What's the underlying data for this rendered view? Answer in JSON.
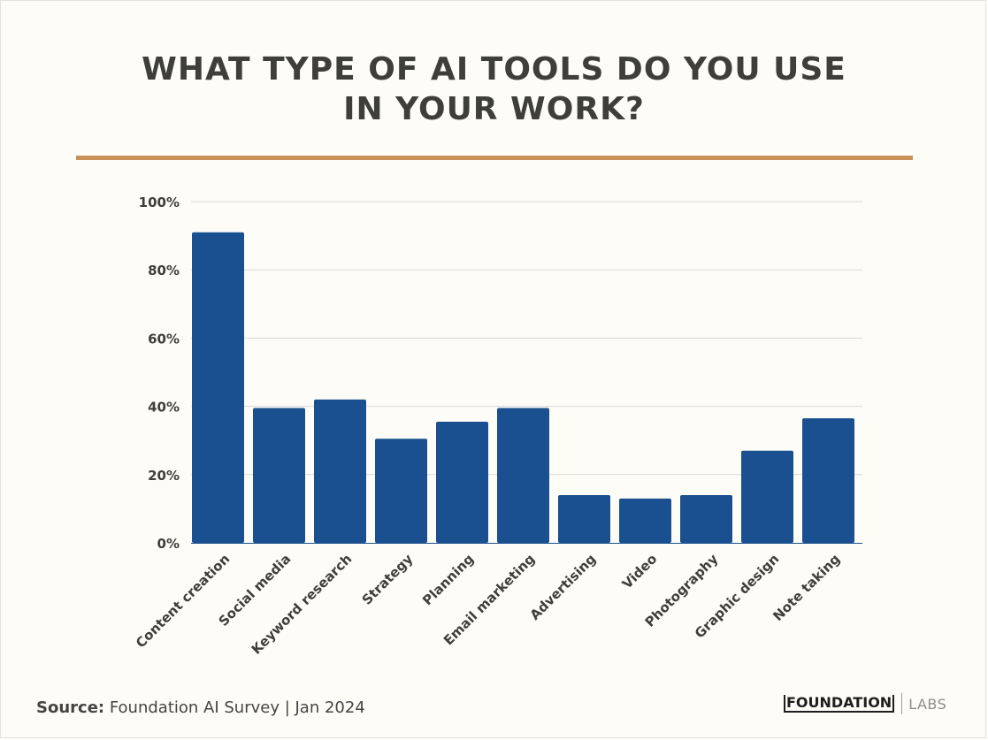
{
  "title_line1": "WHAT TYPE OF AI TOOLS DO YOU USE",
  "title_line2": "IN YOUR WORK?",
  "source": {
    "label": "Source:",
    "text": " Foundation AI Survey | Jan 2024"
  },
  "logo": {
    "main": "FOUNDATION",
    "sub": "LABS"
  },
  "colors": {
    "bar": "#1a508f",
    "accent_rule": "#c9925a",
    "grid": "#d9d9d6",
    "text": "#3e3e3b"
  },
  "chart_data": {
    "type": "bar",
    "categories": [
      "Content creation",
      "Social media",
      "Keyword research",
      "Strategy",
      "Planning",
      "Email marketing",
      "Advertising",
      "Video",
      "Photography",
      "Graphic design",
      "Note taking"
    ],
    "values": [
      91,
      39.5,
      42,
      30.5,
      35.5,
      39.5,
      14,
      13,
      14,
      27,
      36.5
    ],
    "yticks": [
      "0%",
      "20%",
      "40%",
      "60%",
      "80%",
      "100%"
    ],
    "ylim": [
      0,
      100
    ],
    "grid": true,
    "unit": "%"
  }
}
